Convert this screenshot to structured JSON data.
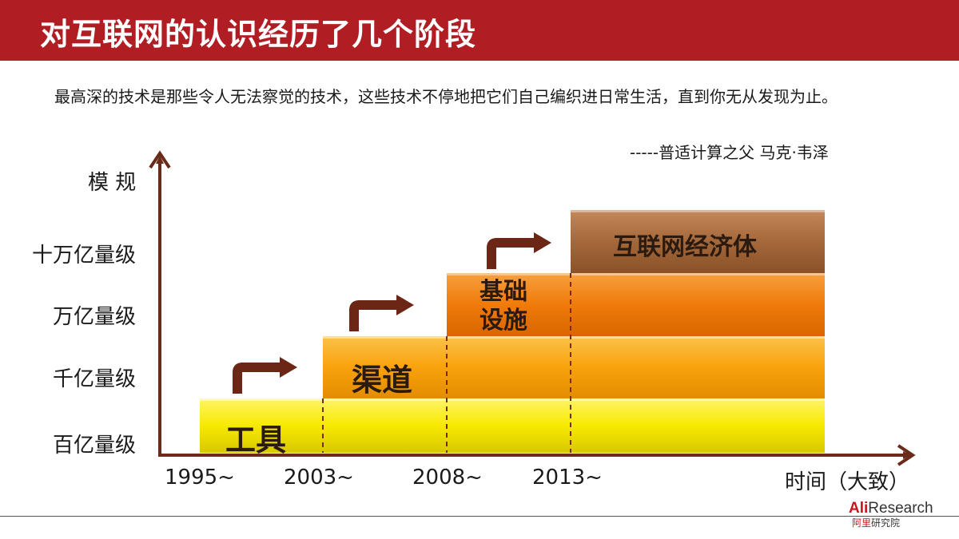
{
  "header": {
    "title": "对互联网的认识经历了几个阶段"
  },
  "quote": {
    "text": "最高深的技术是那些令人无法察觉的技术，这些技术不停地把它们自己编织进日常生活，直到你无从发现为止。",
    "attribution": "-----普适计算之父 马克·韦泽"
  },
  "axes": {
    "y_title": "模 规",
    "x_title": "时间（大致）",
    "y_levels": [
      "百亿量级",
      "千亿量级",
      "万亿量级",
      "十万亿量级"
    ],
    "x_ticks": [
      "1995~",
      "2003~",
      "2008~",
      "2013~"
    ]
  },
  "stages": [
    {
      "label": "工具"
    },
    {
      "label": "渠道"
    },
    {
      "label": "基础\n设施"
    },
    {
      "label": "互联网经济体"
    }
  ],
  "colors": {
    "header": "#b01e23",
    "axis": "#6b2b1a",
    "tool": "#f7ec00",
    "channel": "#f9a20d",
    "infra": "#f07b0a",
    "economy": "#a4683a",
    "arrow": "#6b2616"
  },
  "logo": {
    "brand": "AliResearch",
    "sub": "阿里研究院"
  }
}
